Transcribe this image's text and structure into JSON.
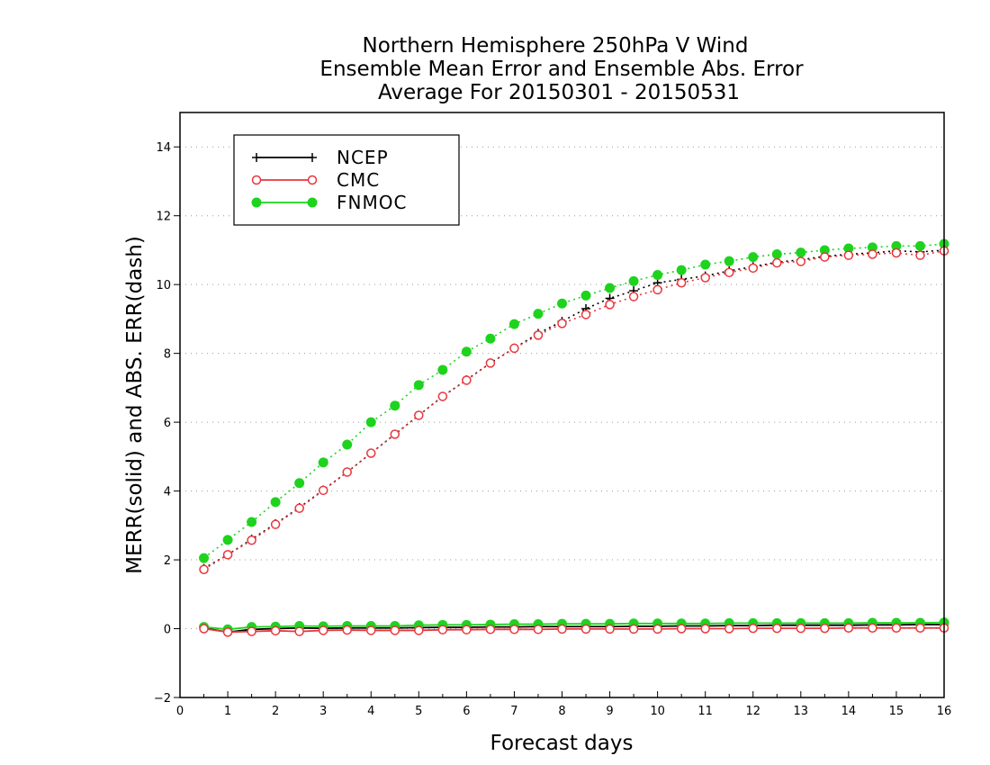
{
  "chart_data": {
    "type": "line",
    "title": [
      "Northern Hemisphere 250hPa V Wind",
      "Ensemble Mean Error and Ensemble Abs. Error",
      "Average For 20150301 - 20150531"
    ],
    "xlabel": "Forecast days",
    "ylabel": "MERR(solid) and ABS. ERR(dash)",
    "xlim": [
      0,
      16
    ],
    "ylim": [
      -2,
      15
    ],
    "xticks": [
      0,
      1,
      2,
      3,
      4,
      5,
      6,
      7,
      8,
      9,
      10,
      11,
      12,
      13,
      14,
      15,
      16
    ],
    "yticks": [
      -2,
      0,
      2,
      4,
      6,
      8,
      10,
      12,
      14
    ],
    "grid": "horizontal dotted",
    "legend_position": "top-left",
    "x": [
      0.5,
      1,
      1.5,
      2,
      2.5,
      3,
      3.5,
      4,
      4.5,
      5,
      5.5,
      6,
      6.5,
      7,
      7.5,
      8,
      8.5,
      9,
      9.5,
      10,
      10.5,
      11,
      11.5,
      12,
      12.5,
      13,
      13.5,
      14,
      14.5,
      15,
      15.5,
      16
    ],
    "series": [
      {
        "name": "NCEP",
        "color": "#000000",
        "marker": "plus",
        "abs_err": [
          1.75,
          2.15,
          2.6,
          3.05,
          3.52,
          4.03,
          4.55,
          5.1,
          5.65,
          6.2,
          6.75,
          7.23,
          7.72,
          8.15,
          8.58,
          8.93,
          9.3,
          9.6,
          9.82,
          10.05,
          10.15,
          10.25,
          10.4,
          10.52,
          10.65,
          10.72,
          10.82,
          10.88,
          10.92,
          10.98,
          10.95,
          11.0
        ],
        "mean_err": [
          0.02,
          -0.1,
          -0.02,
          0.0,
          0.02,
          0.01,
          0.02,
          0.02,
          0.02,
          0.03,
          0.04,
          0.04,
          0.05,
          0.05,
          0.06,
          0.06,
          0.06,
          0.06,
          0.07,
          0.07,
          0.08,
          0.08,
          0.09,
          0.09,
          0.1,
          0.1,
          0.1,
          0.1,
          0.11,
          0.11,
          0.12,
          0.12
        ]
      },
      {
        "name": "CMC",
        "color": "#e8363b",
        "marker": "open-circle",
        "abs_err": [
          1.72,
          2.15,
          2.57,
          3.03,
          3.5,
          4.02,
          4.55,
          5.1,
          5.65,
          6.2,
          6.75,
          7.22,
          7.72,
          8.15,
          8.53,
          8.87,
          9.13,
          9.42,
          9.65,
          9.85,
          10.05,
          10.2,
          10.35,
          10.48,
          10.63,
          10.67,
          10.8,
          10.85,
          10.88,
          10.92,
          10.85,
          10.98
        ],
        "mean_err": [
          0.0,
          -0.1,
          -0.08,
          -0.06,
          -0.08,
          -0.05,
          -0.04,
          -0.05,
          -0.05,
          -0.05,
          -0.03,
          -0.03,
          -0.02,
          -0.02,
          -0.02,
          -0.01,
          -0.01,
          -0.01,
          -0.01,
          -0.01,
          0.0,
          0.0,
          0.0,
          0.01,
          0.01,
          0.01,
          0.01,
          0.02,
          0.02,
          0.02,
          0.02,
          0.02
        ]
      },
      {
        "name": "FNMOC",
        "color": "#1ed31e",
        "marker": "filled-circle",
        "abs_err": [
          2.05,
          2.58,
          3.1,
          3.68,
          4.23,
          4.83,
          5.35,
          6.0,
          6.48,
          7.08,
          7.52,
          8.05,
          8.43,
          8.85,
          9.15,
          9.45,
          9.68,
          9.9,
          10.1,
          10.28,
          10.42,
          10.58,
          10.68,
          10.8,
          10.88,
          10.93,
          11.0,
          11.05,
          11.08,
          11.12,
          11.12,
          11.18
        ],
        "mean_err": [
          0.05,
          -0.02,
          0.05,
          0.06,
          0.08,
          0.07,
          0.08,
          0.08,
          0.08,
          0.1,
          0.11,
          0.11,
          0.12,
          0.13,
          0.13,
          0.14,
          0.14,
          0.14,
          0.15,
          0.15,
          0.15,
          0.15,
          0.16,
          0.16,
          0.16,
          0.16,
          0.16,
          0.16,
          0.17,
          0.17,
          0.17,
          0.18
        ]
      }
    ]
  }
}
